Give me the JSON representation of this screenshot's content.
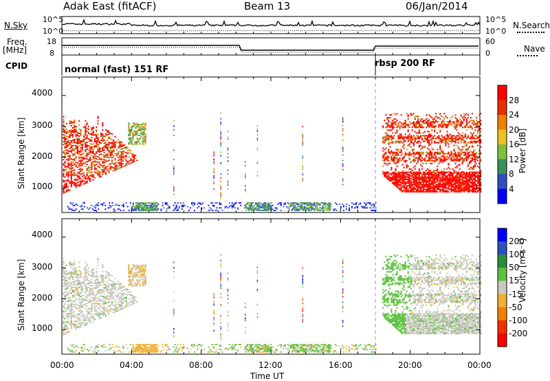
{
  "header": {
    "left_title": "Adak East (fitACF)",
    "center_title": "Beam 13",
    "date": "06/Jan/2014"
  },
  "top_strip": {
    "left_label": "N.Sky",
    "right_label": "N.Search",
    "left_ticks": [
      "10^5",
      "10^0"
    ],
    "right_ticks": [
      "10^5",
      "10^0"
    ]
  },
  "freq_strip": {
    "left_label": "Freq.",
    "left_unit": "[MHz]",
    "right_label": "Nave",
    "left_ticks": [
      "18",
      "8"
    ],
    "right_ticks": [
      "60",
      "0"
    ]
  },
  "cpid_strip": {
    "label": "CPID",
    "segments": [
      {
        "text": "normal (fast) 151 RF"
      },
      {
        "text": "rbsp 200 RF"
      }
    ]
  },
  "chart_data": [
    {
      "type": "heatmap",
      "title": "",
      "xlabel": "Time UT",
      "ylabel": "Slant Range [km]",
      "x_range_hours": [
        0,
        24
      ],
      "y_range_km": [
        200,
        4600
      ],
      "y_ticks": [
        "4000",
        "3000",
        "2000",
        "1000"
      ],
      "colorbar_label": "Power [dB]",
      "colorbar_ticks": [
        "28",
        "24",
        "20",
        "16",
        "12",
        "8",
        "4"
      ],
      "colorbar_range": [
        0,
        32
      ],
      "colors": [
        "#0000ff",
        "#2f4fbf",
        "#3a8f5a",
        "#7fbf3f",
        "#f0c020",
        "#f08000",
        "#e83000",
        "#ff0000"
      ]
    },
    {
      "type": "heatmap",
      "title": "",
      "xlabel": "Time UT",
      "ylabel": "Slant Range [km]",
      "x_range_hours": [
        0,
        24
      ],
      "y_range_km": [
        200,
        4600
      ],
      "y_ticks": [
        "4000",
        "3000",
        "2000",
        "1000"
      ],
      "colorbar_label": "Velocity [m s⁻¹]",
      "colorbar_ticks": [
        "200",
        "100",
        "50",
        "15",
        "-15",
        "-50",
        "-100",
        "-200"
      ],
      "colorbar_range": [
        -250,
        250
      ],
      "colors": [
        "#ff0000",
        "#f03000",
        "#f08000",
        "#f0b030",
        "#c8c8c0",
        "#60c040",
        "#2a8f3a",
        "#2f4fbf",
        "#0000ff"
      ]
    }
  ],
  "x_axis": {
    "ticks": [
      "00:00",
      "04:00",
      "08:00",
      "12:00",
      "16:00",
      "20:00",
      "00:00"
    ],
    "label": "Time UT"
  },
  "mode_change_hour": 18
}
